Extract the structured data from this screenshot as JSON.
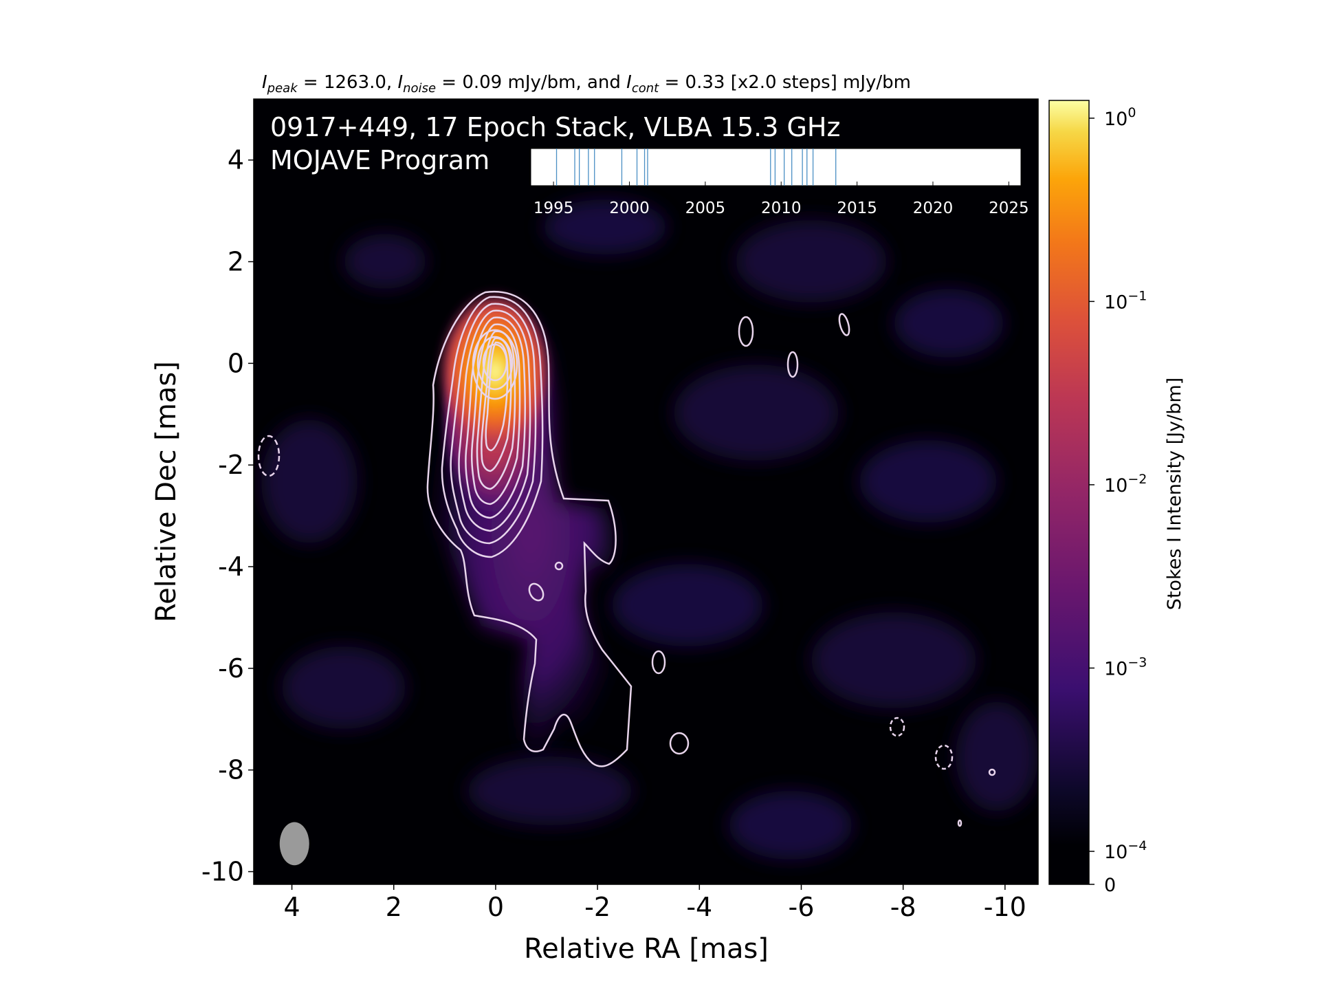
{
  "chart_data": {
    "type": "heatmap",
    "title_parts": {
      "peak_symbol": "I",
      "peak_sub": "peak",
      "peak_text": " = 1263.0, ",
      "noise_symbol": "I",
      "noise_sub": "noise",
      "noise_text": " = 0.09 mJy/bm, and ",
      "cont_symbol": "I",
      "cont_sub": "cont",
      "cont_text": " = 0.33 [x2.0 steps] mJy/bm"
    },
    "annotation_line1": "0917+449, 17 Epoch Stack, VLBA 15.3 GHz",
    "annotation_line2": "MOJAVE Program",
    "xlabel": "Relative RA [mas]",
    "ylabel": "Relative Dec [mas]",
    "xlim": [
      4.75,
      -10.65
    ],
    "ylim": [
      -10.25,
      5.2
    ],
    "x_ticks": [
      4,
      2,
      0,
      -2,
      -4,
      -6,
      -8,
      -10
    ],
    "x_tick_labels": [
      "4",
      "2",
      "0",
      "-2",
      "-4",
      "-6",
      "-8",
      "-10"
    ],
    "y_ticks": [
      4,
      2,
      0,
      -2,
      -4,
      -6,
      -8,
      -10
    ],
    "y_tick_labels": [
      "4",
      "2",
      "0",
      "-2",
      "-4",
      "-6",
      "-8",
      "-10"
    ],
    "colorbar": {
      "label": "Stokes I Intensity [Jy/bm]",
      "ticks": [
        {
          "value": 1,
          "label_base": "10",
          "label_exp": "0"
        },
        {
          "value": 0.1,
          "label_base": "10",
          "label_exp": "−1"
        },
        {
          "value": 0.01,
          "label_base": "10",
          "label_exp": "−2"
        },
        {
          "value": 0.001,
          "label_base": "10",
          "label_exp": "−3"
        },
        {
          "value": 0.0001,
          "label_base": "10",
          "label_exp": "−4"
        },
        {
          "value": 0,
          "label_base": "0",
          "label_exp": ""
        }
      ],
      "colormap": "inferno",
      "colors": [
        "#000004",
        "#1b0c41",
        "#4a0c6b",
        "#781c6d",
        "#a52c60",
        "#cf4446",
        "#ed6925",
        "#fb9b06",
        "#f7d13d",
        "#fcffa4"
      ]
    },
    "epochs_inset": {
      "xlim": [
        1993.5,
        2025.8
      ],
      "ticks": [
        1995,
        2000,
        2005,
        2010,
        2015,
        2020,
        2025
      ],
      "tick_labels": [
        "1995",
        "2000",
        "2005",
        "2010",
        "2015",
        "2020",
        "2025"
      ],
      "epochs": [
        1995.2,
        1996.4,
        1996.7,
        1997.3,
        1997.7,
        1999.5,
        2000.5,
        2001.0,
        2001.2,
        2009.3,
        2009.6,
        2010.2,
        2010.7,
        2011.4,
        2011.7,
        2012.1,
        2013.6
      ],
      "line_color": "#4a8fc4"
    },
    "beam": {
      "x": 3.95,
      "y": -9.45,
      "major_mas": 0.85,
      "minor_mas": 0.58,
      "color": "#9a9a9a"
    },
    "core": {
      "x": 0.0,
      "y": 0.0,
      "peak_jy": 1.263
    },
    "contour_color": "#e8d5ec"
  }
}
